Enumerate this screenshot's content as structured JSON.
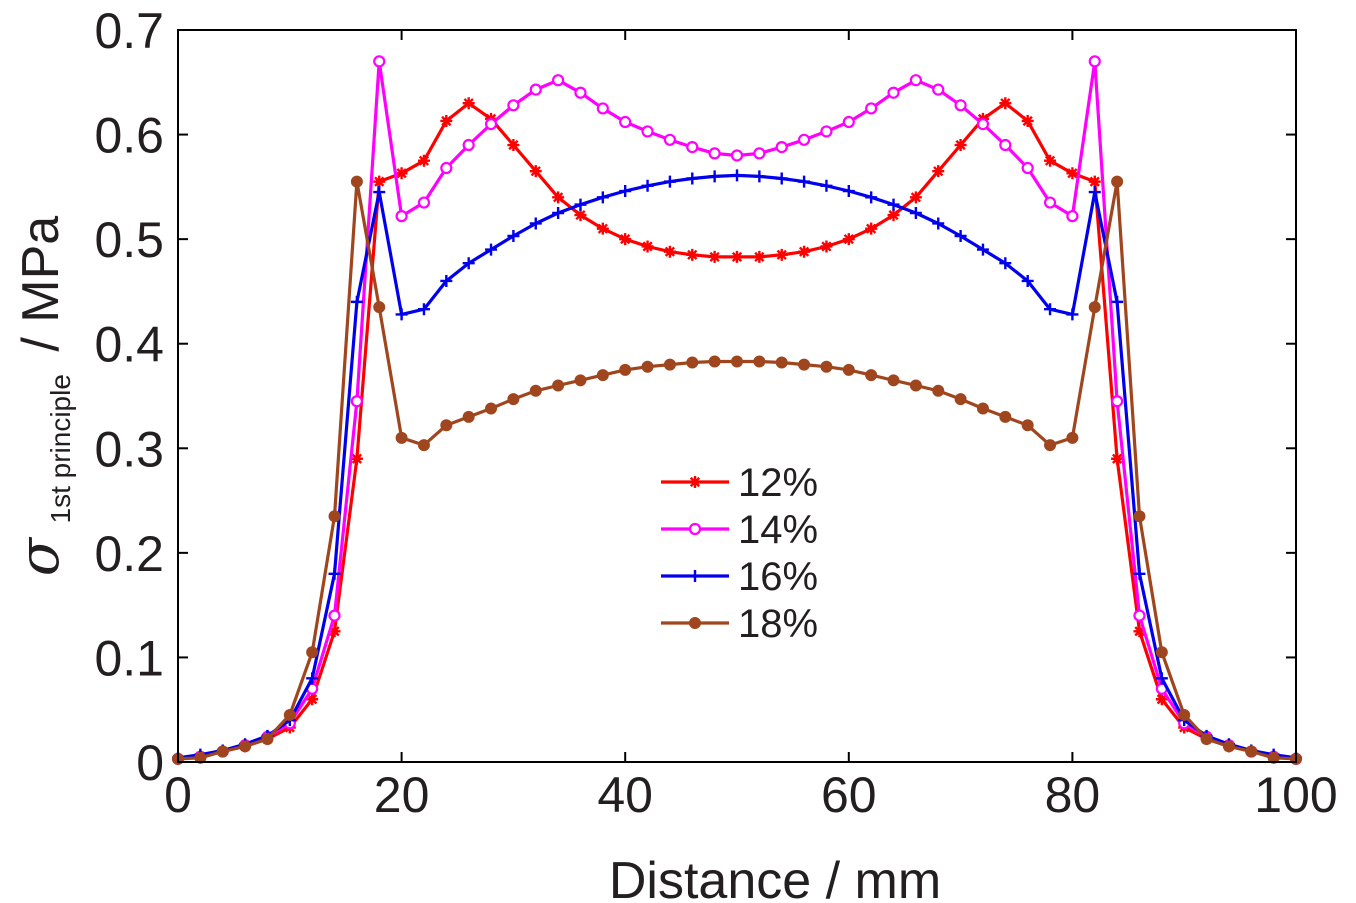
{
  "chart_data": {
    "type": "line",
    "xlabel": "Distance / mm",
    "ylabel_symbol": "σ",
    "ylabel_subscript": "1st principle",
    "ylabel_unit": "/ MPa",
    "xlim": [
      0,
      100
    ],
    "ylim": [
      0,
      0.7
    ],
    "xticks": [
      "0",
      "20",
      "40",
      "60",
      "80",
      "100"
    ],
    "yticks": [
      "0",
      "0.1",
      "0.2",
      "0.3",
      "0.4",
      "0.5",
      "0.6",
      "0.7"
    ],
    "grid": false,
    "legend_position": "center",
    "x": [
      0,
      2,
      4,
      6,
      8,
      10,
      12,
      14,
      16,
      18,
      20,
      22,
      24,
      26,
      28,
      30,
      32,
      34,
      36,
      38,
      40,
      42,
      44,
      46,
      48,
      50,
      52,
      54,
      56,
      58,
      60,
      62,
      64,
      66,
      68,
      70,
      72,
      74,
      76,
      78,
      80,
      82,
      84,
      86,
      88,
      90,
      92,
      94,
      96,
      98,
      100
    ],
    "series": [
      {
        "name": "12%",
        "color": "#ff0000",
        "marker": "star",
        "values": [
          0.003,
          0.005,
          0.01,
          0.015,
          0.022,
          0.033,
          0.06,
          0.125,
          0.29,
          0.555,
          0.563,
          0.575,
          0.613,
          0.63,
          0.615,
          0.59,
          0.565,
          0.54,
          0.523,
          0.51,
          0.5,
          0.493,
          0.488,
          0.485,
          0.483,
          0.483,
          0.483,
          0.485,
          0.488,
          0.493,
          0.5,
          0.51,
          0.523,
          0.54,
          0.565,
          0.59,
          0.615,
          0.63,
          0.613,
          0.575,
          0.563,
          0.555,
          0.29,
          0.125,
          0.06,
          0.033,
          0.022,
          0.015,
          0.01,
          0.005,
          0.003
        ]
      },
      {
        "name": "14%",
        "color": "#ff00ff",
        "marker": "circle-open",
        "values": [
          0.003,
          0.005,
          0.01,
          0.016,
          0.024,
          0.037,
          0.07,
          0.14,
          0.345,
          0.67,
          0.522,
          0.535,
          0.568,
          0.59,
          0.61,
          0.628,
          0.643,
          0.652,
          0.64,
          0.625,
          0.612,
          0.603,
          0.595,
          0.588,
          0.582,
          0.58,
          0.582,
          0.588,
          0.595,
          0.603,
          0.612,
          0.625,
          0.64,
          0.652,
          0.643,
          0.628,
          0.61,
          0.59,
          0.568,
          0.535,
          0.522,
          0.67,
          0.345,
          0.14,
          0.07,
          0.037,
          0.024,
          0.016,
          0.01,
          0.005,
          0.003
        ]
      },
      {
        "name": "16%",
        "color": "#0000ee",
        "marker": "plus",
        "values": [
          0.004,
          0.007,
          0.011,
          0.017,
          0.025,
          0.04,
          0.08,
          0.18,
          0.44,
          0.545,
          0.428,
          0.433,
          0.46,
          0.477,
          0.49,
          0.503,
          0.515,
          0.525,
          0.533,
          0.54,
          0.546,
          0.551,
          0.555,
          0.558,
          0.56,
          0.561,
          0.56,
          0.558,
          0.555,
          0.551,
          0.546,
          0.54,
          0.533,
          0.525,
          0.515,
          0.503,
          0.49,
          0.477,
          0.46,
          0.433,
          0.428,
          0.545,
          0.44,
          0.18,
          0.08,
          0.04,
          0.025,
          0.017,
          0.011,
          0.007,
          0.004
        ]
      },
      {
        "name": "18%",
        "color": "#a0461e",
        "marker": "circle",
        "values": [
          0.003,
          0.004,
          0.01,
          0.015,
          0.022,
          0.045,
          0.105,
          0.235,
          0.555,
          0.435,
          0.31,
          0.303,
          0.322,
          0.33,
          0.338,
          0.347,
          0.355,
          0.36,
          0.365,
          0.37,
          0.375,
          0.378,
          0.38,
          0.382,
          0.383,
          0.383,
          0.383,
          0.382,
          0.38,
          0.378,
          0.375,
          0.37,
          0.365,
          0.36,
          0.355,
          0.347,
          0.338,
          0.33,
          0.322,
          0.303,
          0.31,
          0.435,
          0.555,
          0.235,
          0.105,
          0.045,
          0.022,
          0.015,
          0.01,
          0.004,
          0.003
        ]
      }
    ]
  }
}
